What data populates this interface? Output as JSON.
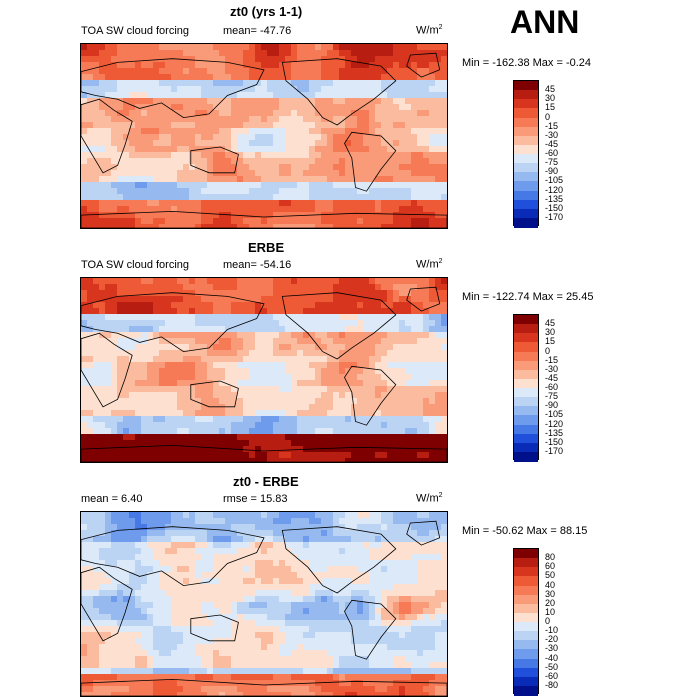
{
  "season_label": "ANN",
  "panels": [
    {
      "id": "model",
      "title": "zt0 (yrs 1-1)",
      "left_label": "TOA SW cloud forcing",
      "stat1": "mean= -47.76",
      "stat2": "",
      "units": "W/m",
      "units_sup": "2",
      "minmax": "Min = -162.38  Max =   -0.24",
      "colorbar": {
        "levels": [
          "45",
          "30",
          "15",
          "0",
          "-15",
          "-30",
          "-45",
          "-60",
          "-75",
          "-90",
          "-105",
          "-120",
          "-135",
          "-150",
          "-170"
        ],
        "colors": [
          "#7f0000",
          "#b81d12",
          "#d7351e",
          "#ee5a36",
          "#f57a55",
          "#f99a78",
          "#fbbb9f",
          "#fde0cf",
          "#dce9f8",
          "#bcd4f3",
          "#96baf0",
          "#6f9bec",
          "#4678e6",
          "#1f4fdb",
          "#0a2ab8",
          "#00108a"
        ]
      }
    },
    {
      "id": "obs",
      "title": "ERBE",
      "left_label": "TOA SW cloud forcing",
      "stat1": "mean= -54.16",
      "stat2": "",
      "units": "W/m",
      "units_sup": "2",
      "minmax": "Min = -122.74  Max =  25.45",
      "colorbar": {
        "levels": [
          "45",
          "30",
          "15",
          "0",
          "-15",
          "-30",
          "-45",
          "-60",
          "-75",
          "-90",
          "-105",
          "-120",
          "-135",
          "-150",
          "-170"
        ],
        "colors": [
          "#7f0000",
          "#b81d12",
          "#d7351e",
          "#ee5a36",
          "#f57a55",
          "#f99a78",
          "#fbbb9f",
          "#fde0cf",
          "#dce9f8",
          "#bcd4f3",
          "#96baf0",
          "#6f9bec",
          "#4678e6",
          "#1f4fdb",
          "#0a2ab8",
          "#00108a"
        ]
      }
    },
    {
      "id": "diff",
      "title": "zt0 - ERBE",
      "left_label": "mean =    6.40",
      "stat1": "rmse =   15.83",
      "stat2": "",
      "units": "W/m",
      "units_sup": "2",
      "minmax": "Min = -50.62  Max =  88.15",
      "colorbar": {
        "levels": [
          "80",
          "60",
          "50",
          "40",
          "30",
          "20",
          "10",
          "0",
          "-10",
          "-20",
          "-30",
          "-40",
          "-50",
          "-60",
          "-80"
        ],
        "colors": [
          "#7f0000",
          "#b81d12",
          "#d7351e",
          "#ee5a36",
          "#f57a55",
          "#f99a78",
          "#fbbb9f",
          "#fde0cf",
          "#dce9f8",
          "#bcd4f3",
          "#96baf0",
          "#6f9bec",
          "#4678e6",
          "#1f4fdb",
          "#0a2ab8",
          "#00108a"
        ]
      }
    }
  ],
  "chart_data": [
    {
      "type": "heatmap",
      "title": "zt0 (yrs 1-1)",
      "variable": "TOA SW cloud forcing",
      "units": "W/m2",
      "mean": -47.76,
      "min": -162.38,
      "max": -0.24,
      "contour_levels": [
        45,
        30,
        15,
        0,
        -15,
        -30,
        -45,
        -60,
        -75,
        -90,
        -105,
        -120,
        -135,
        -150,
        -170
      ]
    },
    {
      "type": "heatmap",
      "title": "ERBE",
      "variable": "TOA SW cloud forcing",
      "units": "W/m2",
      "mean": -54.16,
      "min": -122.74,
      "max": 25.45,
      "contour_levels": [
        45,
        30,
        15,
        0,
        -15,
        -30,
        -45,
        -60,
        -75,
        -90,
        -105,
        -120,
        -135,
        -150,
        -170
      ]
    },
    {
      "type": "heatmap",
      "title": "zt0 - ERBE",
      "units": "W/m2",
      "mean": 6.4,
      "rmse": 15.83,
      "min": -50.62,
      "max": 88.15,
      "contour_levels": [
        80,
        60,
        50,
        40,
        30,
        20,
        10,
        0,
        -10,
        -20,
        -30,
        -40,
        -50,
        -60,
        -80
      ]
    }
  ]
}
